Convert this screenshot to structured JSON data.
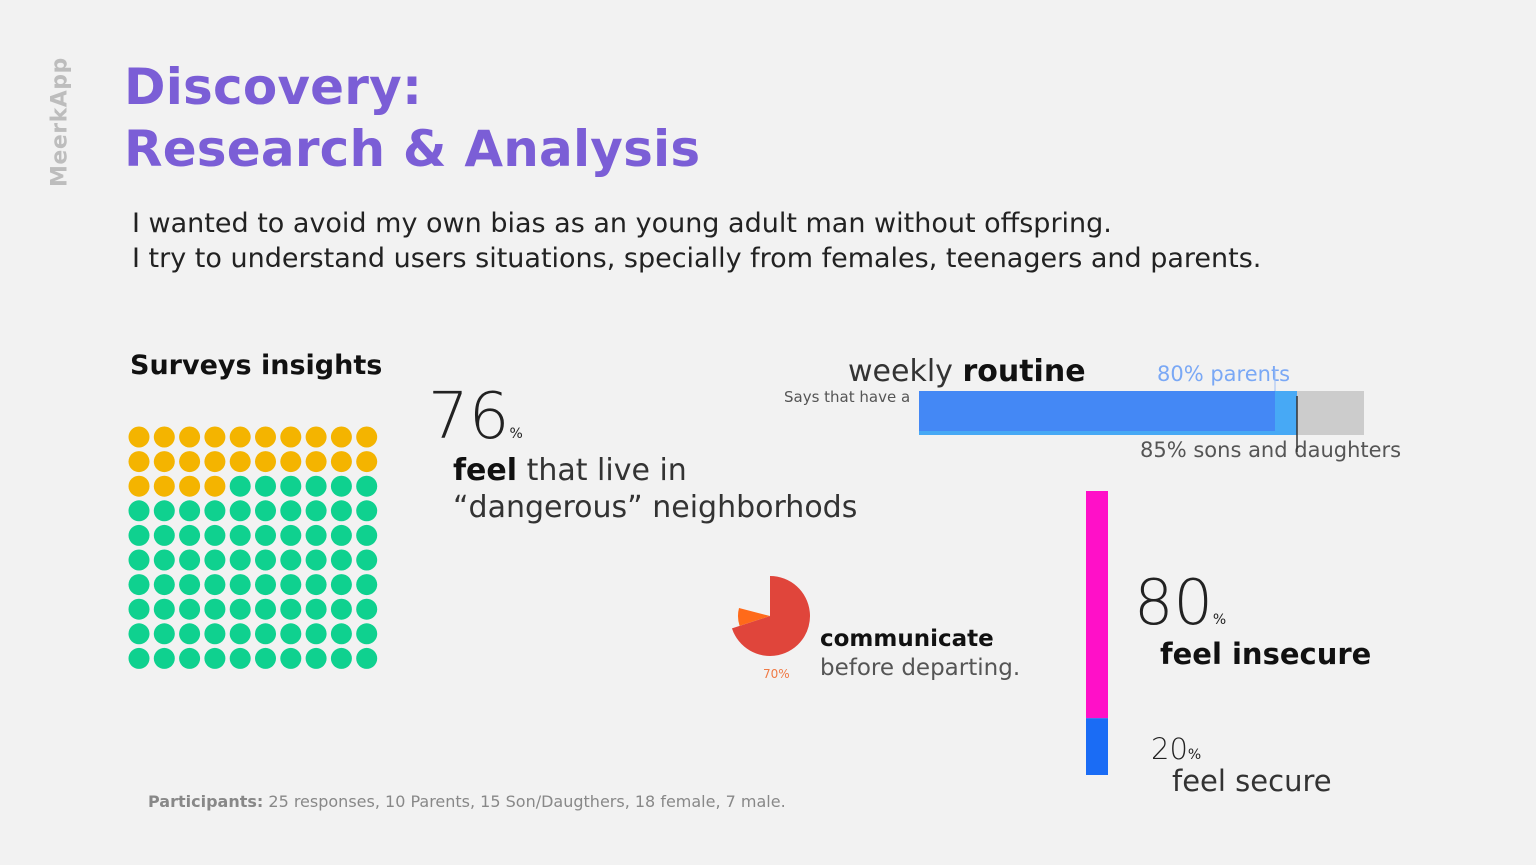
{
  "brand": "MeerkApp",
  "title_line1": "Discovery:",
  "title_line2": "Research & Analysis",
  "intro_line1": "I wanted to avoid my own bias as an young adult man without offspring.",
  "intro_line2": "I try to understand users situations, specially from females, teenagers and parents.",
  "section_title": "Surveys insights",
  "participants_label": "Participants:",
  "participants_text": " 25 responses, 10 Parents, 15 Son/Daugthers, 18 female, 7 male.",
  "colors": {
    "title": "#7b5ed6",
    "waffle_yellow": "#f4b400",
    "waffle_green": "#0fd18f",
    "parents_bar": "#4488f5",
    "sons_bar": "#47a9f5",
    "bar_bg": "#cccccc",
    "insecure": "#ff10c8",
    "secure": "#1a6cf5",
    "pie_main": "#e0453b",
    "pie_small": "#ff6a1a"
  },
  "chart_data": [
    {
      "type": "waffle",
      "value": 76,
      "unit": "%",
      "total_cells": 100,
      "value_text": "76",
      "pct_sign": "%",
      "text_bold": "feel",
      "text_rest": " that live in",
      "text_line2": "“dangerous” neighborhods"
    },
    {
      "type": "bar",
      "small_label": "Says that have a",
      "title_light": "weekly ",
      "title_bold": "routine",
      "max": 100,
      "series": [
        {
          "name": "80% parents",
          "value": 80
        },
        {
          "name": "85% sons and daughters",
          "value": 85
        }
      ]
    },
    {
      "type": "pie",
      "value": 70,
      "label": "70%",
      "title": "communicate",
      "subtitle": "before departing."
    },
    {
      "type": "bar",
      "orientation": "vertical-stacked",
      "series": [
        {
          "name": "feel insecure",
          "value": 80,
          "value_text": "80",
          "pct": "%",
          "label_bold": "feel insecure"
        },
        {
          "name": "feel secure",
          "value": 20,
          "value_text": "20",
          "pct": "%",
          "label": "feel secure"
        }
      ]
    }
  ]
}
